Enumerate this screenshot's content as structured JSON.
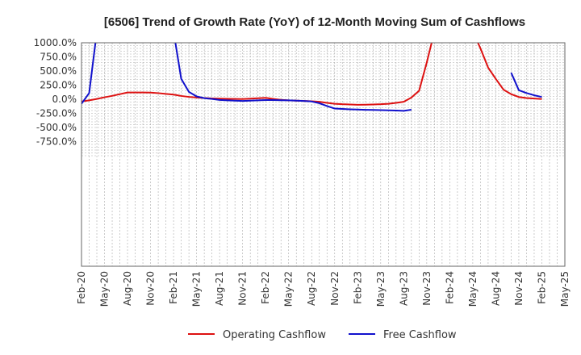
{
  "chart_data": {
    "type": "line",
    "title": "[6506]  Trend of Growth Rate (YoY) of 12-Month Moving Sum of Cashflows",
    "xlabel": "",
    "ylabel": "",
    "ylim": [
      -1000,
      1000
    ],
    "y_ticks": [
      1000,
      750,
      500,
      250,
      0,
      -250,
      -500,
      -750
    ],
    "y_tick_labels": [
      "1000.0%",
      "750.0%",
      "500.0%",
      "250.0%",
      "0.0%",
      "-250.0%",
      "-500.0%",
      "-750.0%"
    ],
    "x_ticks": [
      "2020-02",
      "2020-05",
      "2020-08",
      "2020-11",
      "2021-02",
      "2021-05",
      "2021-08",
      "2021-11",
      "2022-02",
      "2022-05",
      "2022-08",
      "2022-11",
      "2023-02",
      "2023-05",
      "2023-08",
      "2023-11",
      "2024-02",
      "2024-05",
      "2024-08",
      "2024-11",
      "2025-02",
      "2025-05"
    ],
    "x_tick_labels": [
      "Feb-20",
      "May-20",
      "Aug-20",
      "Nov-20",
      "Feb-21",
      "May-21",
      "Aug-21",
      "Nov-21",
      "Feb-22",
      "May-22",
      "Aug-22",
      "Nov-22",
      "Feb-23",
      "May-23",
      "Aug-23",
      "Nov-23",
      "Feb-24",
      "May-24",
      "Aug-24",
      "Nov-24",
      "Feb-25",
      "May-25"
    ],
    "grid": true,
    "legend_position": "bottom-center",
    "series": [
      {
        "name": "Operating Cashflow",
        "color": "#dd1111",
        "points": [
          [
            "2020-02",
            -40
          ],
          [
            "2020-03",
            -20
          ],
          [
            "2020-04",
            5
          ],
          [
            "2020-05",
            35
          ],
          [
            "2020-06",
            60
          ],
          [
            "2020-07",
            90
          ],
          [
            "2020-08",
            120
          ],
          [
            "2020-09",
            120
          ],
          [
            "2020-10",
            120
          ],
          [
            "2020-11",
            118
          ],
          [
            "2020-12",
            108
          ],
          [
            "2021-01",
            95
          ],
          [
            "2021-02",
            82
          ],
          [
            "2021-03",
            58
          ],
          [
            "2021-04",
            42
          ],
          [
            "2021-05",
            30
          ],
          [
            "2021-06",
            22
          ],
          [
            "2021-07",
            15
          ],
          [
            "2021-08",
            10
          ],
          [
            "2021-09",
            7
          ],
          [
            "2021-10",
            5
          ],
          [
            "2021-11",
            4
          ],
          [
            "2021-12",
            10
          ],
          [
            "2022-01",
            18
          ],
          [
            "2022-02",
            25
          ],
          [
            "2022-03",
            5
          ],
          [
            "2022-04",
            -10
          ],
          [
            "2022-05",
            -20
          ],
          [
            "2022-06",
            -25
          ],
          [
            "2022-07",
            -30
          ],
          [
            "2022-08",
            -35
          ],
          [
            "2022-09",
            -45
          ],
          [
            "2022-10",
            -65
          ],
          [
            "2022-11",
            -80
          ],
          [
            "2022-12",
            -88
          ],
          [
            "2023-01",
            -92
          ],
          [
            "2023-02",
            -98
          ],
          [
            "2023-03",
            -96
          ],
          [
            "2023-04",
            -92
          ],
          [
            "2023-05",
            -88
          ],
          [
            "2023-06",
            -80
          ],
          [
            "2023-07",
            -65
          ],
          [
            "2023-08",
            -45
          ],
          [
            "2023-09",
            30
          ],
          [
            "2023-10",
            150
          ],
          [
            "2023-11",
            650
          ],
          [
            "2023-12",
            1200
          ],
          [
            "2024-05",
            1200
          ],
          [
            "2024-06",
            900
          ],
          [
            "2024-07",
            560
          ],
          [
            "2024-08",
            360
          ],
          [
            "2024-09",
            170
          ],
          [
            "2024-10",
            90
          ],
          [
            "2024-11",
            40
          ],
          [
            "2024-12",
            22
          ],
          [
            "2025-01",
            12
          ],
          [
            "2025-02",
            4
          ]
        ]
      },
      {
        "name": "Free Cashflow",
        "color": "#1111cc",
        "points": [
          [
            [
              "2020-02",
              -80
            ],
            [
              "2020-03",
              110
            ],
            [
              "2020-04",
              1200
            ]
          ],
          [
            [
              "2021-02",
              1200
            ],
            [
              "2021-03",
              360
            ],
            [
              "2021-04",
              130
            ],
            [
              "2021-05",
              50
            ],
            [
              "2021-06",
              20
            ],
            [
              "2021-07",
              5
            ],
            [
              "2021-08",
              -12
            ],
            [
              "2021-09",
              -20
            ],
            [
              "2021-10",
              -25
            ],
            [
              "2021-11",
              -30
            ],
            [
              "2021-12",
              -25
            ],
            [
              "2022-01",
              -20
            ],
            [
              "2022-02",
              -15
            ],
            [
              "2022-03",
              -15
            ],
            [
              "2022-04",
              -17
            ],
            [
              "2022-05",
              -20
            ],
            [
              "2022-06",
              -25
            ],
            [
              "2022-07",
              -30
            ],
            [
              "2022-08",
              -40
            ],
            [
              "2022-09",
              -70
            ],
            [
              "2022-10",
              -120
            ],
            [
              "2022-11",
              -165
            ],
            [
              "2022-12",
              -172
            ],
            [
              "2023-01",
              -178
            ],
            [
              "2023-02",
              -183
            ],
            [
              "2023-03",
              -187
            ],
            [
              "2023-04",
              -190
            ],
            [
              "2023-05",
              -193
            ],
            [
              "2023-06",
              -197
            ],
            [
              "2023-07",
              -200
            ],
            [
              "2023-08",
              -205
            ],
            [
              "2023-09",
              -185
            ]
          ],
          [
            [
              "2024-10",
              470
            ],
            [
              "2024-11",
              160
            ],
            [
              "2024-12",
              110
            ],
            [
              "2025-01",
              70
            ],
            [
              "2025-02",
              40
            ]
          ]
        ]
      }
    ]
  }
}
